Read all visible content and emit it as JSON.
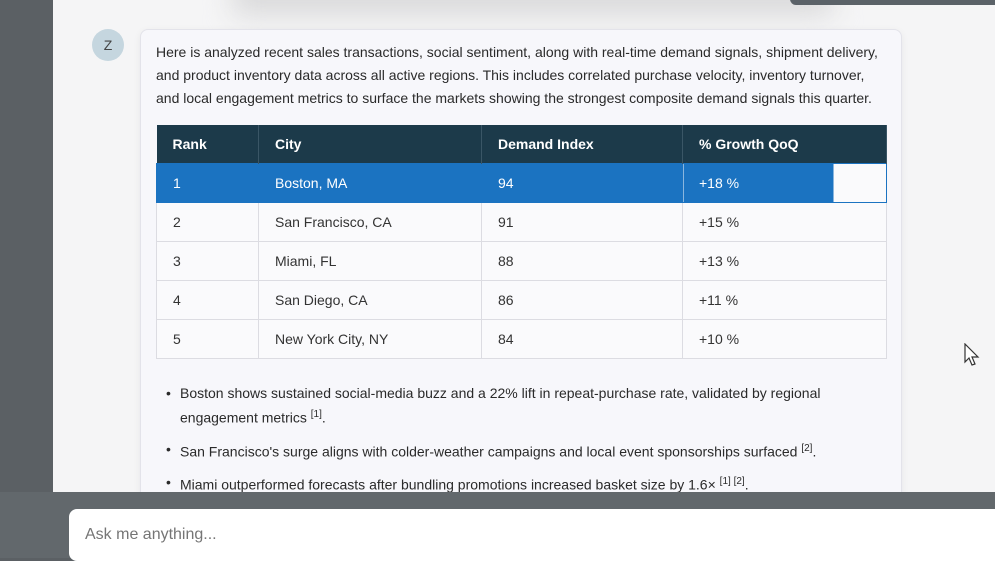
{
  "avatar": {
    "initial": "Z"
  },
  "message": {
    "intro": "Here is analyzed recent sales transactions, social sentiment, along with real-time demand signals, shipment delivery, and product inventory data across all active regions. This includes correlated purchase velocity, inventory turnover, and local engagement metrics to surface the markets showing the strongest composite demand signals this quarter.",
    "table": {
      "headers": [
        "Rank",
        "City",
        "Demand Index",
        "% Growth QoQ"
      ],
      "rows": [
        [
          "1",
          "Boston, MA",
          "94",
          "+18 %"
        ],
        [
          "2",
          "San Francisco, CA",
          "91",
          "+15 %"
        ],
        [
          "3",
          "Miami, FL",
          "88",
          "+13 %"
        ],
        [
          "4",
          "San Diego, CA",
          "86",
          "+11 %"
        ],
        [
          "5",
          "New York City, NY",
          "84",
          "+10 %"
        ]
      ]
    },
    "bullets": [
      {
        "text": "Boston shows sustained social-media buzz and a 22% lift in repeat-purchase rate, validated by regional engagement metrics ",
        "cite": "[1]",
        "end": "."
      },
      {
        "text": "San Francisco's surge aligns with colder-weather campaigns and local event sponsorships surfaced ",
        "cite": "[2]",
        "end": "."
      },
      {
        "text": "Miami outperformed forecasts after bundling promotions increased basket size by 1.6× ",
        "cite": "[1] [2]",
        "end": "."
      }
    ]
  },
  "input": {
    "placeholder": "Ask me anything..."
  }
}
